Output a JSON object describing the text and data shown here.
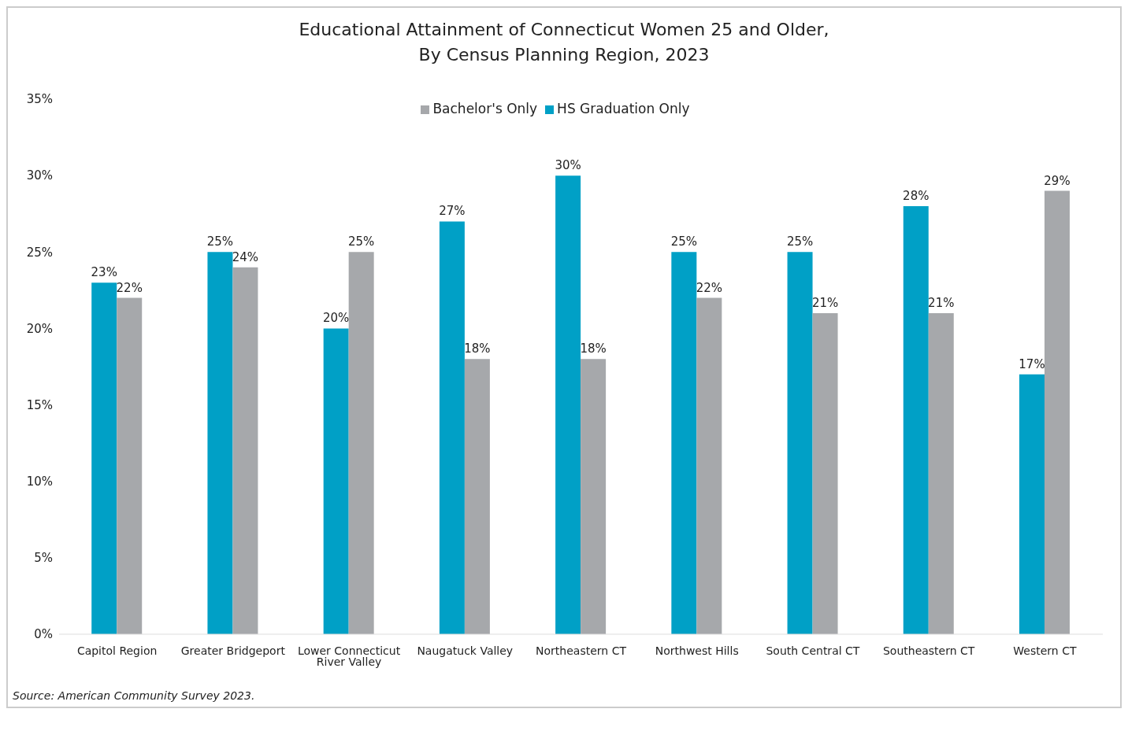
{
  "chart_data": {
    "type": "bar",
    "title": "Educational Attainment of Connecticut Women 25 and Older,\nBy Census Planning Region, 2023",
    "categories": [
      "Capitol Region",
      "Greater Bridgeport",
      "Lower Connecticut River Valley",
      "Naugatuck Valley",
      "Northeastern CT",
      "Northwest Hills",
      "South Central CT",
      "Southeastern CT",
      "Western CT"
    ],
    "series": [
      {
        "name": "HS Graduation Only",
        "color": "#00a0c6",
        "values": [
          23,
          25,
          20,
          27,
          30,
          25,
          25,
          28,
          17
        ],
        "value_labels": [
          "23%",
          "25%",
          "20%",
          "27%",
          "30%",
          "25%",
          "25%",
          "28%",
          "17%"
        ]
      },
      {
        "name": "Bachelor's Only",
        "color": "#a6a8ab",
        "values": [
          22,
          24,
          25,
          18,
          18,
          22,
          21,
          21,
          29
        ],
        "value_labels": [
          "22%",
          "24%",
          "25%",
          "18%",
          "18%",
          "22%",
          "21%",
          "21%",
          "29%"
        ]
      }
    ],
    "ylim": [
      0,
      35
    ],
    "yticks": [
      {
        "value": 0,
        "label": "0%"
      },
      {
        "value": 5,
        "label": "5%"
      },
      {
        "value": 10,
        "label": "10%"
      },
      {
        "value": 15,
        "label": "15%"
      },
      {
        "value": 20,
        "label": "20%"
      },
      {
        "value": 25,
        "label": "25%"
      },
      {
        "value": 30,
        "label": "30%"
      },
      {
        "value": 35,
        "label": "35%"
      }
    ],
    "grid": false,
    "legend": "top",
    "annotations": [
      "Source: American Community Survey 2023."
    ]
  }
}
